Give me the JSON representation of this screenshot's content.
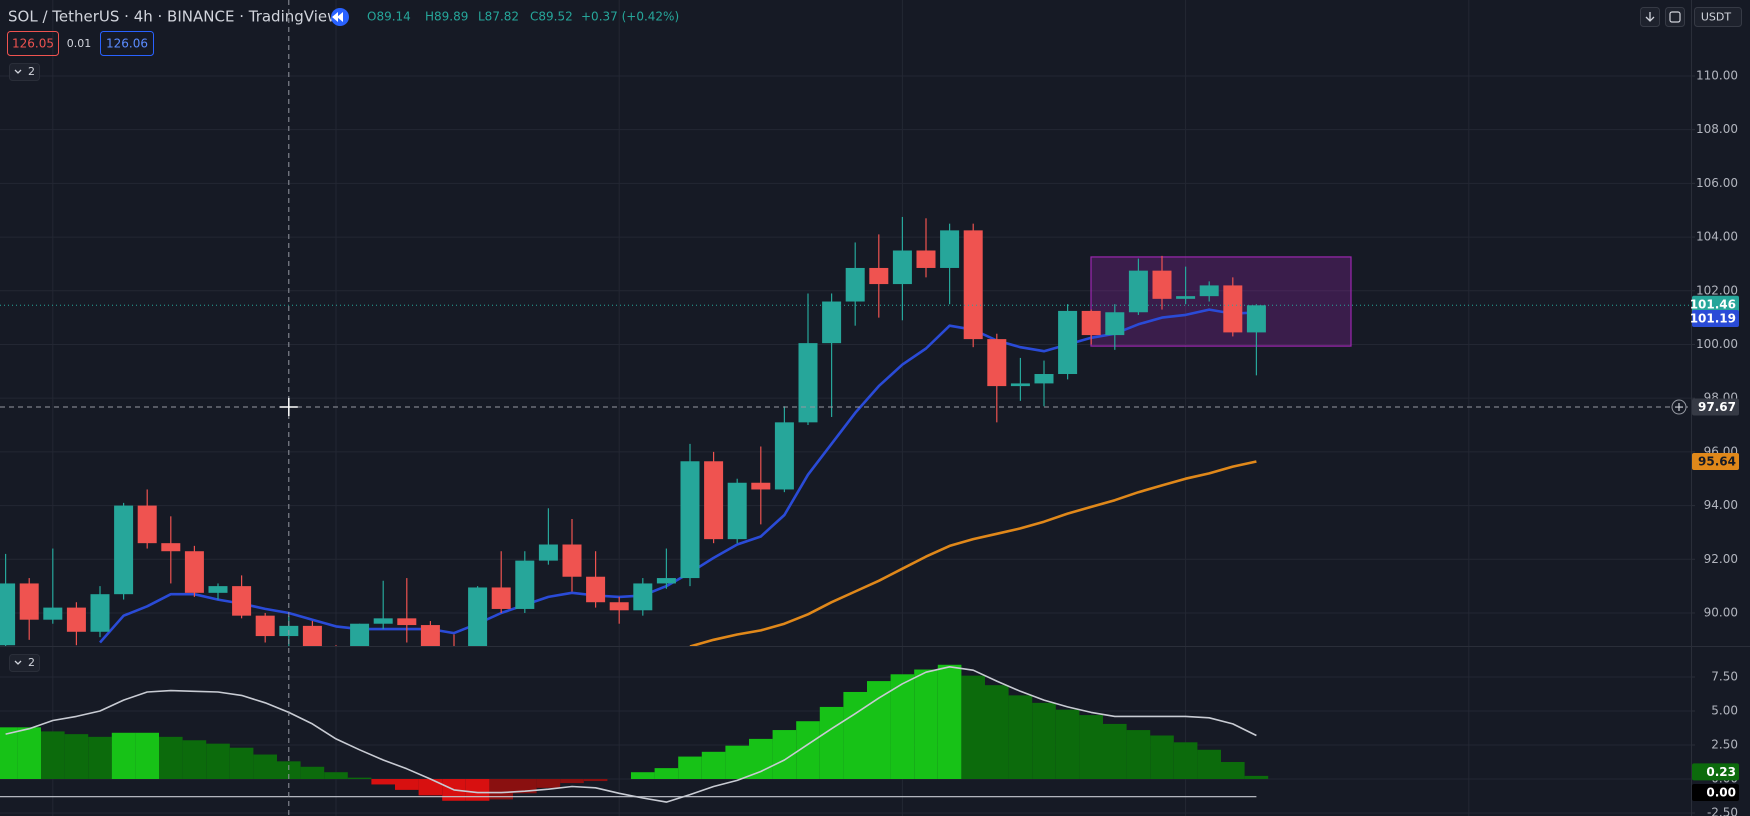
{
  "chart_data": [
    {
      "type": "candlestick",
      "title": "SOL / TetherUS · 4h · BINANCE · TradingView",
      "legend_values": [
        "O89.14",
        "H89.89",
        "L87.82",
        "C89.52",
        "+0.37 (+0.42%)"
      ],
      "bid": 126.05,
      "spread": 0.01,
      "ask": 126.06,
      "indicator_count": 2,
      "currency": "USDT",
      "up_color": "#26a69a",
      "down_color": "#ef5350",
      "open": [
        88.8,
        91.1,
        89.75,
        90.2,
        89.3,
        90.7,
        94.0,
        92.6,
        92.3,
        90.75,
        91.0,
        89.9,
        89.14,
        89.52,
        88.6,
        88.5,
        89.6,
        89.8,
        89.55,
        88.7,
        88.6,
        90.95,
        90.15,
        91.95,
        92.55,
        91.35,
        90.4,
        90.1,
        91.1,
        91.3,
        95.65,
        92.75,
        94.85,
        94.6,
        97.1,
        100.05,
        101.6,
        102.85,
        102.25,
        103.5,
        102.85,
        104.25,
        100.2,
        98.45,
        98.55,
        98.9,
        101.25,
        100.35,
        101.2,
        102.75,
        101.7,
        101.8,
        102.2,
        100.45
      ],
      "high": [
        92.2,
        91.3,
        92.4,
        90.4,
        91.0,
        94.1,
        94.6,
        93.6,
        92.5,
        91.1,
        91.4,
        90.0,
        89.89,
        89.7,
        88.8,
        89.6,
        91.2,
        91.3,
        89.7,
        89.2,
        91.0,
        92.3,
        92.3,
        93.9,
        93.5,
        92.3,
        90.6,
        91.3,
        92.4,
        96.3,
        96.0,
        95.0,
        96.2,
        97.7,
        101.9,
        101.9,
        103.8,
        104.1,
        104.75,
        104.7,
        104.5,
        104.5,
        100.4,
        99.5,
        99.4,
        101.5,
        101.3,
        101.5,
        103.2,
        103.3,
        102.9,
        102.35,
        102.5,
        101.5
      ],
      "low": [
        88.7,
        89.0,
        89.6,
        88.8,
        89.1,
        90.5,
        92.4,
        91.1,
        90.6,
        90.5,
        89.8,
        88.9,
        87.82,
        88.4,
        88.2,
        88.4,
        89.4,
        88.9,
        88.5,
        88.2,
        88.5,
        90.0,
        90.0,
        91.8,
        90.8,
        90.2,
        89.6,
        89.9,
        90.9,
        91.0,
        92.6,
        92.6,
        93.3,
        94.5,
        97.0,
        97.3,
        100.7,
        101.0,
        100.9,
        102.5,
        101.5,
        99.9,
        97.1,
        97.9,
        97.7,
        98.7,
        100.0,
        99.8,
        101.1,
        101.3,
        101.5,
        101.6,
        100.3,
        98.85
      ],
      "close": [
        91.1,
        89.75,
        90.2,
        89.3,
        90.7,
        94.0,
        92.6,
        92.3,
        90.75,
        91.0,
        89.9,
        89.14,
        89.52,
        88.6,
        88.5,
        89.6,
        89.8,
        89.55,
        88.7,
        88.6,
        90.95,
        90.15,
        91.95,
        92.55,
        91.35,
        90.4,
        90.1,
        91.1,
        91.3,
        95.65,
        92.75,
        94.85,
        94.6,
        97.1,
        100.05,
        101.6,
        102.85,
        102.25,
        103.5,
        102.85,
        104.25,
        100.2,
        98.45,
        98.55,
        98.9,
        101.25,
        100.35,
        101.2,
        102.75,
        101.7,
        101.8,
        102.2,
        100.45,
        101.46
      ],
      "series": [
        {
          "color": "#2a4bd7",
          "values": [
            null,
            null,
            null,
            null,
            88.9,
            89.9,
            90.25,
            90.7,
            90.7,
            90.5,
            90.35,
            90.15,
            90.0,
            89.75,
            89.5,
            89.4,
            89.4,
            89.4,
            89.4,
            89.25,
            89.6,
            90.0,
            90.3,
            90.6,
            90.75,
            90.65,
            90.6,
            90.65,
            91.0,
            91.5,
            92.05,
            92.55,
            92.85,
            93.65,
            95.15,
            96.3,
            97.45,
            98.45,
            99.25,
            99.85,
            100.7,
            100.55,
            100.15,
            99.9,
            99.75,
            100.0,
            100.25,
            100.4,
            100.75,
            101.0,
            101.1,
            101.3,
            101.15,
            101.19
          ]
        },
        {
          "color": "#e0881a",
          "values": [
            null,
            null,
            null,
            null,
            null,
            null,
            null,
            null,
            null,
            null,
            null,
            null,
            null,
            null,
            null,
            null,
            null,
            null,
            null,
            null,
            null,
            null,
            null,
            null,
            null,
            null,
            null,
            null,
            null,
            88.75,
            89.0,
            89.2,
            89.35,
            89.6,
            89.95,
            90.4,
            90.8,
            91.2,
            91.65,
            92.1,
            92.5,
            92.75,
            92.95,
            93.15,
            93.4,
            93.7,
            93.95,
            94.2,
            94.5,
            94.75,
            95.0,
            95.2,
            95.45,
            95.64
          ]
        }
      ],
      "last_price": 101.46,
      "crosshair_price": 97.67,
      "rectangle": {
        "top": 103.26,
        "bottom": 99.94,
        "color": "#9c27b0"
      },
      "ylim": [
        88.77,
        112.83
      ],
      "yticks": [
        {
          "value": 90,
          "label": "90.00"
        },
        {
          "value": 92,
          "label": "92.00"
        },
        {
          "value": 94,
          "label": "94.00"
        },
        {
          "value": 96,
          "label": "96.00"
        },
        {
          "value": 98,
          "label": "98.00"
        },
        {
          "value": 100,
          "label": "100.00"
        },
        {
          "value": 102,
          "label": "102.00"
        },
        {
          "value": 104,
          "label": "104.00"
        },
        {
          "value": 106,
          "label": "106.00"
        },
        {
          "value": 108,
          "label": "108.00"
        },
        {
          "value": 110,
          "label": "110.00"
        }
      ],
      "grid": true
    },
    {
      "type": "area",
      "indicator_count": 2,
      "palette": [
        "#17c217",
        "#0c6b0c",
        "#d81010",
        "#8a1010"
      ],
      "values": [
        3.8,
        3.8,
        3.5,
        3.3,
        3.1,
        3.4,
        3.4,
        3.1,
        2.85,
        2.6,
        2.3,
        1.8,
        1.3,
        0.9,
        0.5,
        0.1,
        -0.4,
        -0.8,
        -1.2,
        -1.6,
        -1.6,
        -1.5,
        -1.05,
        -0.65,
        -0.3,
        -0.15,
        0.0,
        0.5,
        0.8,
        1.65,
        2.0,
        2.45,
        2.95,
        3.6,
        4.25,
        5.3,
        6.4,
        7.2,
        7.7,
        8.05,
        8.4,
        7.6,
        6.9,
        6.15,
        5.6,
        5.1,
        4.7,
        4.05,
        3.6,
        3.2,
        2.7,
        2.15,
        1.25,
        0.23
      ],
      "series": [
        {
          "color": "#c8cbd3",
          "values": [
            3.3,
            3.7,
            4.3,
            4.6,
            5.0,
            5.8,
            6.4,
            6.5,
            6.45,
            6.4,
            6.15,
            5.6,
            4.9,
            4.05,
            2.95,
            2.15,
            1.4,
            0.75,
            0.0,
            -0.8,
            -1.0,
            -1.0,
            -0.9,
            -0.75,
            -0.55,
            -0.65,
            -1.05,
            -1.4,
            -1.7,
            -1.15,
            -0.55,
            -0.1,
            0.55,
            1.4,
            2.55,
            3.7,
            4.8,
            5.95,
            7.0,
            7.85,
            8.25,
            8.0,
            7.2,
            6.45,
            5.8,
            5.3,
            4.9,
            4.6,
            4.6,
            4.6,
            4.6,
            4.5,
            4.05,
            3.2
          ]
        }
      ],
      "hline": -1.3,
      "ylim": [
        -2.72,
        9.78
      ],
      "yticks": [
        {
          "value": -2.5,
          "label": "-2.50"
        },
        {
          "value": 0,
          "label": "0.00"
        },
        {
          "value": 2.5,
          "label": "2.50"
        },
        {
          "value": 5,
          "label": "5.00"
        },
        {
          "value": 7.5,
          "label": "7.50"
        }
      ],
      "grid": true
    }
  ]
}
